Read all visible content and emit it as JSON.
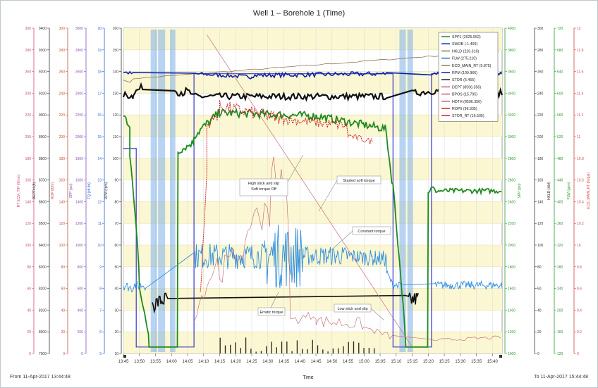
{
  "chart_data": {
    "type": "line",
    "title": "Well 1 – Borehole 1 (Time)",
    "xlabel": "Time",
    "x_ticks": [
      "13:45",
      "13:50",
      "13:55",
      "14:00",
      "14:05",
      "14:10",
      "14:15",
      "14:20",
      "14:25",
      "14:30",
      "14:35",
      "14:40",
      "14:45",
      "14:50",
      "14:55",
      "15:00",
      "15:05",
      "15:10",
      "15:15",
      "15:20",
      "15:25",
      "15:30",
      "15:35",
      "15:40"
    ],
    "x_range": [
      "13:45",
      "15:43"
    ],
    "grid": true,
    "legend_position": "top-right",
    "colors": {
      "background_bands": [
        "#fbf7d2",
        "#ffffff"
      ],
      "spp": "#1f8a1f",
      "sws": "#0a1fb0",
      "hkld": "#8a7a55",
      "tq": "#111111",
      "flow": "#1f6fd6",
      "rop": "#cc2222",
      "dept": "#c06070",
      "tds": "#2f8fe0"
    },
    "legend": [
      "SPP1 (2025.552)",
      "SWOB (-1.409)",
      "HKLD (226.310)",
      "FLW (275.210)",
      "ECD_MAIN_RT (9.875)",
      "RPM (109.966)",
      "STOR (6.455)",
      "DEPT (8596.356)",
      "BPOS (15.795)",
      "HDTH (8596.356)",
      "ROP5 (96.935)",
      "STOR_RT (16.505)"
    ],
    "left_axes": [
      {
        "color": "#d04a7a",
        "ticks": [
          "300",
          "280",
          "260",
          "240",
          "220",
          "200",
          "180",
          "160",
          "140",
          "120",
          "100",
          "80",
          "60",
          "40",
          "20",
          "0"
        ],
        "label": "RT ECM_TIP (ft/min)"
      },
      {
        "color": "#333333",
        "ticks": [
          "9400",
          "9300",
          "9200",
          "9100",
          "9000",
          "8900",
          "8800",
          "8700",
          "8600",
          "8500",
          "8400",
          "8300",
          "8200",
          "8100",
          "8000",
          "7900"
        ],
        "label": "DEPTH (ft)"
      },
      {
        "color": "#c0503a",
        "ticks": [
          "300",
          "280",
          "260",
          "240",
          "220",
          "200",
          "180",
          "160",
          "140",
          "120",
          "100",
          "80",
          "60",
          "40",
          "20",
          "0"
        ],
        "label": "ROP (ft/hr)"
      },
      {
        "color": "#8a56c0",
        "ticks": [
          "3000",
          "2800",
          "2600",
          "2400",
          "2200",
          "2000",
          "1800",
          "1600",
          "1400",
          "1200",
          "1000",
          "800",
          "600",
          "400",
          "200",
          "0"
        ],
        "label": "SPP (psi)"
      },
      {
        "color": "#2a5fd8",
        "ticks": [
          "20",
          "19",
          "18",
          "17",
          "16",
          "15",
          "14",
          "13",
          "12",
          "11",
          "10",
          "9",
          "8",
          "7",
          "6",
          "5"
        ],
        "label": "TQ (kft.lbf)"
      },
      {
        "color": "#333333",
        "ticks": [
          "160",
          "150",
          "140",
          "130",
          "120",
          "110",
          "100",
          "90",
          "80",
          "70",
          "60",
          "50",
          "40",
          "30",
          "20",
          "10"
        ],
        "label": "RPM (rpm)"
      }
    ],
    "right_axes": [
      {
        "color": "#2f9a2f",
        "ticks": [
          "4000",
          "3800",
          "3600",
          "3400",
          "3200",
          "3000",
          "2800",
          "2600",
          "2400",
          "2200",
          "2000",
          "1800",
          "1600",
          "1400",
          "1200",
          "1000"
        ],
        "label": "SPP (psi)"
      },
      {
        "color": "#333333",
        "ticks": [
          "300",
          "280",
          "260",
          "240",
          "220",
          "200",
          "180",
          "160",
          "140",
          "120",
          "100",
          "80",
          "60",
          "40",
          "20",
          "0"
        ],
        "label": "HKLD (klbf)"
      },
      {
        "color": "#2f9a2f",
        "ticks": [
          "720",
          "680",
          "640",
          "600",
          "560",
          "520",
          "480",
          "440",
          "400",
          "360",
          "320",
          "280",
          "240",
          "200",
          "160",
          "120"
        ],
        "label": "FLW (gpm)"
      },
      {
        "color": "#d04a4a",
        "ticks": [
          "12",
          "11.8",
          "11.6",
          "11.4",
          "11.2",
          "11",
          "10.8",
          "10.6",
          "10.4",
          "10.2",
          "10",
          "9.8",
          "9.6",
          "9.4",
          "9.2",
          "9"
        ],
        "label": "ECD_MAIN_RT (lb/gal)"
      }
    ],
    "annotations": [
      {
        "text": "High stick and slip Soft torque Off"
      },
      {
        "text": "Started soft torque"
      },
      {
        "text": "Constant torque"
      },
      {
        "text": "Erratic torque"
      },
      {
        "text": "Low stick and slip"
      }
    ],
    "footer_left": "From 11-Apr-2017 13:44:48",
    "footer_right": "To 11-Apr-2017 15:44:48"
  }
}
